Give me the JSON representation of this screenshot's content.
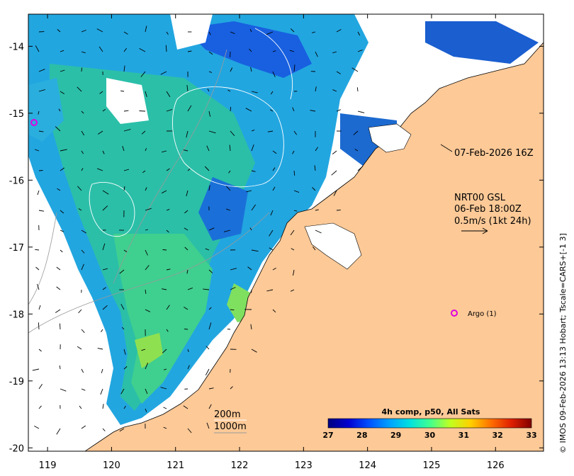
{
  "map": {
    "lon_ticks": [
      "119",
      "120",
      "121",
      "122",
      "123",
      "124",
      "125",
      "126"
    ],
    "lat_ticks": [
      "-14",
      "-15",
      "-16",
      "-17",
      "-18",
      "-19",
      "-20"
    ],
    "lon_range": [
      118.7,
      126.75
    ],
    "lat_range": [
      -20.05,
      -13.52
    ]
  },
  "annotations": {
    "track_label": "07-Feb-2026 16Z",
    "product_line1": "NRT00 GSL",
    "product_line2": "06-Feb 18:00Z",
    "product_line3": "0.5m/s (1kt 24h)",
    "contour_label_1": "200m",
    "contour_label_2": "1000m",
    "argo_label": "Argo (1)"
  },
  "colorbar": {
    "title": "4h comp, p50, All Sats",
    "ticks": [
      "27",
      "28",
      "29",
      "30",
      "31",
      "32",
      "33"
    ],
    "colors": [
      "#000080",
      "#0000d0",
      "#0050ff",
      "#00a0ff",
      "#00e0e0",
      "#40ff90",
      "#c0ff20",
      "#ffd000",
      "#ff7000",
      "#e02000",
      "#800000"
    ]
  },
  "credit": "© IMOS 09-Feb-2026 13:13 Hobart; Tscale=CARS+[-1 3]",
  "colors": {
    "land": "#fcc997",
    "argo": "#e000e0",
    "frame": "#000000"
  }
}
